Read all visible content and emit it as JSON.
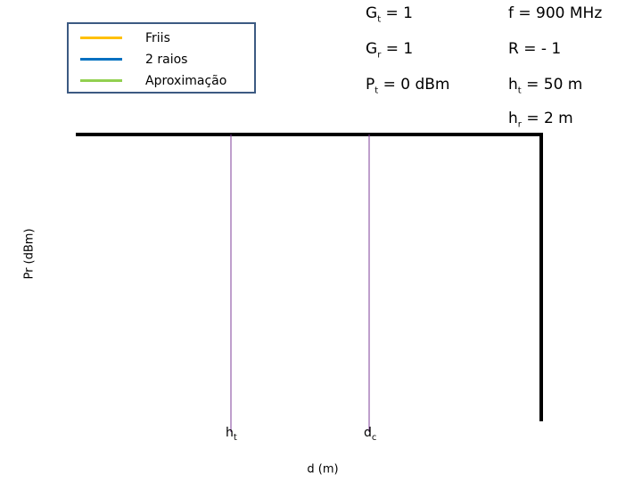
{
  "legend": {
    "items": [
      {
        "label": "Friis",
        "color": "#ffc000"
      },
      {
        "label": "2 raios",
        "color": "#0070c0"
      },
      {
        "label": "Aproximação",
        "color": "#92d050"
      }
    ]
  },
  "parameters": [
    {
      "symbol": "G",
      "sub": "t",
      "value": "= 1"
    },
    {
      "symbol": "f = 900 MHz",
      "sub": "",
      "value": ""
    },
    {
      "symbol": "G",
      "sub": "r",
      "value": "= 1"
    },
    {
      "symbol": "R = - 1",
      "sub": "",
      "value": ""
    },
    {
      "symbol": "P",
      "sub": "t",
      "value": "= 0 dBm"
    },
    {
      "symbol": "h",
      "sub": "t",
      "value": "= 50 m"
    },
    {
      "symbol": "h",
      "sub": "r",
      "value": "= 2 m"
    }
  ],
  "plot": {
    "y_label": "Pr (dBm)",
    "x_label": "d (m)",
    "markers": [
      {
        "symbol": "h",
        "sub": "t"
      },
      {
        "symbol": "d",
        "sub": "c"
      }
    ]
  }
}
